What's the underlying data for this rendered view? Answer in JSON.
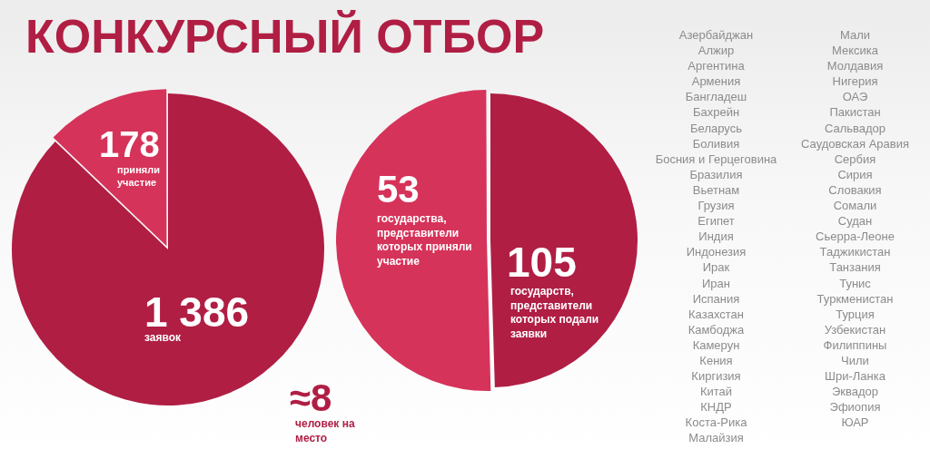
{
  "chart_data": [
    {
      "type": "pie",
      "title": "КОНКУРСНЫЙ ОТБОР",
      "categories": [
        "приняли участие",
        null
      ],
      "values": [
        178,
        1208
      ],
      "colors": [
        "#d6335a",
        "#b01e44"
      ],
      "value_labels": [
        "178",
        null
      ],
      "legend": false,
      "annotations": [
        "1 386",
        "заявок",
        "≈8",
        "человек на место"
      ]
    },
    {
      "type": "pie",
      "categories": [
        "государства, представители которых приняли участие",
        null
      ],
      "values": [
        53,
        52
      ],
      "colors": [
        "#d6335a",
        "#b01e44"
      ],
      "value_labels": [
        "53",
        null
      ],
      "legend": false,
      "annotations": [
        "105",
        "государств, представители которых подали заявки"
      ]
    },
    {
      "type": "other",
      "annotations": [
        "Азербайджан",
        "Алжир",
        "Аргентина",
        "Армения",
        "Бангладеш",
        "Бахрейн",
        "Беларусь",
        "Боливия",
        "Босния и Герцеговина",
        "Бразилия",
        "Вьетнам",
        "Грузия",
        "Египет",
        "Индия",
        "Индонезия",
        "Ирак",
        "Иран",
        "Испания",
        "Казахстан",
        "Камбоджа",
        "Камерун",
        "Кения",
        "Киргизия",
        "Китай",
        "КНДР",
        "Коста-Рика",
        "Малайзия",
        "Мали",
        "Мексика",
        "Молдавия",
        "Нигерия",
        "ОАЭ",
        "Пакистан",
        "Сальвадор",
        "Саудовская Аравия",
        "Сербия",
        "Сирия",
        "Словакия",
        "Сомали",
        "Судан",
        "Сьерра-Леоне",
        "Таджикистан",
        "Танзания",
        "Тунис",
        "Туркменистан",
        "Турция",
        "Узбекистан",
        "Филиппины",
        "Чили",
        "Шри-Ланка",
        "Эквадор",
        "Эфиопия",
        "ЮАР"
      ]
    }
  ]
}
